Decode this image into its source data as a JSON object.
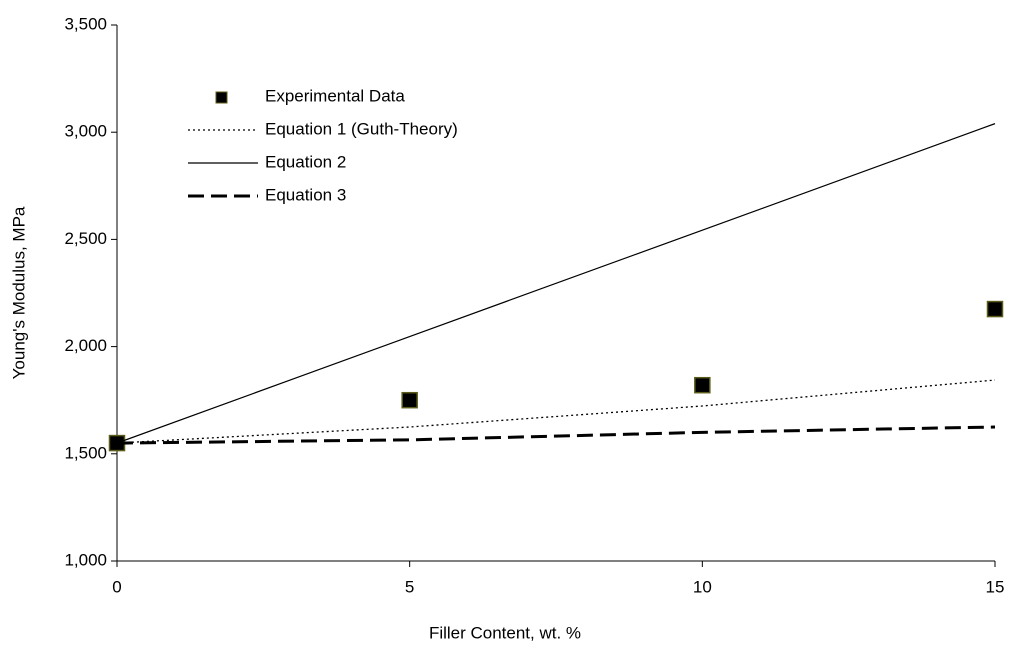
{
  "chart_data": {
    "type": "line",
    "x_label": "Filler Content, wt. %",
    "y_label": "Young's Modulus, MPa",
    "xlim": [
      0,
      15
    ],
    "xticks": [
      0,
      5,
      10,
      15
    ],
    "ylim": [
      1000,
      3500
    ],
    "yticks": [
      {
        "value": 1000,
        "label": "1,000"
      },
      {
        "value": 1500,
        "label": "1,500"
      },
      {
        "value": 2000,
        "label": "2,000"
      },
      {
        "value": 2500,
        "label": "2,500"
      },
      {
        "value": 3000,
        "label": "3,000"
      },
      {
        "value": 3500,
        "label": "3,500"
      }
    ],
    "grid": false,
    "legend": "upper-left",
    "series": [
      {
        "name": "Experimental Data",
        "color": "#000000",
        "style": "markers",
        "marker": "square",
        "x": [
          0,
          5,
          10,
          15
        ],
        "values": [
          1550,
          1750,
          1820,
          2175
        ]
      },
      {
        "name": "Equation 1 (Guth-Theory)",
        "color": "#000000",
        "style": "dotted",
        "x": [
          0,
          5,
          10,
          15
        ],
        "values": [
          1550,
          1625,
          1723,
          1844
        ]
      },
      {
        "name": "Equation 2",
        "color": "#000000",
        "style": "solid",
        "x": [
          0,
          5,
          10,
          15
        ],
        "values": [
          1550,
          2047,
          2543,
          3040
        ]
      },
      {
        "name": "Equation 3",
        "color": "#000000",
        "style": "dashed",
        "x": [
          0,
          5,
          10,
          15
        ],
        "values": [
          1550,
          1565,
          1600,
          1625
        ]
      }
    ]
  }
}
